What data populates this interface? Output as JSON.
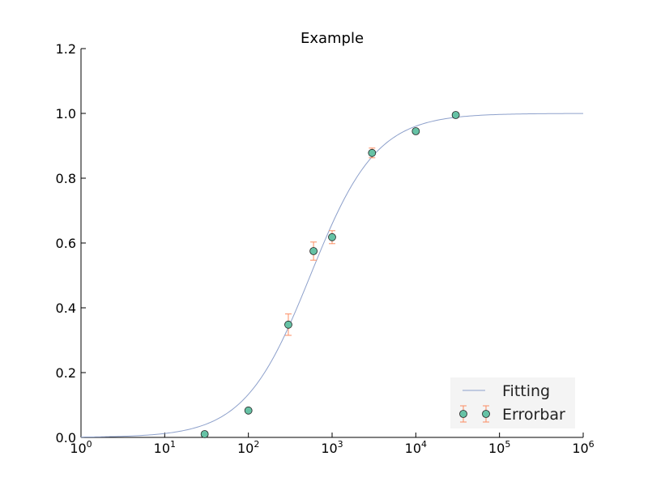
{
  "chart_data": {
    "type": "scatter",
    "title": "Example",
    "xlabel": "",
    "ylabel": "",
    "xscale": "log",
    "xlim": [
      1,
      1000000
    ],
    "ylim": [
      0,
      1.2
    ],
    "x_ticks": [
      {
        "value": 1,
        "exp": "0"
      },
      {
        "value": 10,
        "exp": "1"
      },
      {
        "value": 100,
        "exp": "2"
      },
      {
        "value": 1000,
        "exp": "3"
      },
      {
        "value": 10000,
        "exp": "4"
      },
      {
        "value": 100000,
        "exp": "5"
      },
      {
        "value": 1000000,
        "exp": "6"
      }
    ],
    "x_tick_base": "10",
    "y_ticks": [
      {
        "value": 0.0,
        "label": "0.0"
      },
      {
        "value": 0.2,
        "label": "0.2"
      },
      {
        "value": 0.4,
        "label": "0.4"
      },
      {
        "value": 0.6,
        "label": "0.6"
      },
      {
        "value": 0.8,
        "label": "0.8"
      },
      {
        "value": 1.0,
        "label": "1.0"
      },
      {
        "value": 1.2,
        "label": "1.2"
      }
    ],
    "grid": false,
    "legend_position": "lower-right",
    "series": [
      {
        "name": "Fitting",
        "kind": "line",
        "color": "#8da0cb",
        "x": [
          1,
          3,
          10,
          30,
          100,
          200,
          300,
          500,
          700,
          1000,
          1500,
          2000,
          3000,
          5000,
          10000,
          30000,
          100000,
          1000000
        ],
        "y": [
          0.001,
          0.004,
          0.014,
          0.043,
          0.139,
          0.26,
          0.345,
          0.47,
          0.553,
          0.64,
          0.73,
          0.78,
          0.845,
          0.905,
          0.952,
          0.984,
          0.995,
          0.999
        ]
      },
      {
        "name": "Errorbar",
        "kind": "errorbar",
        "marker_color": "#66c2a5",
        "error_color": "#fc8d62",
        "x": [
          30,
          100,
          300,
          600,
          1000,
          3000,
          10000,
          30000
        ],
        "y": [
          0.01,
          0.083,
          0.348,
          0.575,
          0.618,
          0.878,
          0.945,
          0.995
        ],
        "yerr": [
          0.0,
          0.0,
          0.033,
          0.028,
          0.02,
          0.015,
          0.0,
          0.0
        ]
      }
    ]
  }
}
